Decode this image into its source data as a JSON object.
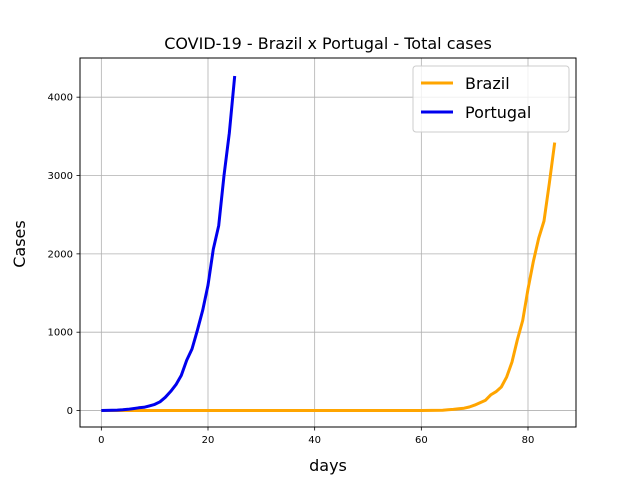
{
  "chart_data": {
    "type": "line",
    "title": "COVID-19 - Brazil x Portugal - Total cases",
    "xlabel": "days",
    "ylabel": "Cases",
    "xlim": [
      -4,
      89
    ],
    "ylim": [
      -210,
      4500
    ],
    "xticks": [
      0,
      20,
      40,
      60,
      80
    ],
    "yticks": [
      0,
      1000,
      2000,
      3000,
      4000
    ],
    "grid": true,
    "legend_position": "top-right",
    "series": [
      {
        "name": "Brazil",
        "color": "#ffa500",
        "x": [
          0,
          5,
          10,
          20,
          30,
          40,
          50,
          55,
          60,
          62,
          64,
          65,
          66,
          67,
          68,
          69,
          70,
          71,
          72,
          73,
          74,
          75,
          76,
          77,
          78,
          79,
          80,
          81,
          82,
          83,
          84,
          85
        ],
        "y": [
          0,
          0,
          0,
          0,
          0,
          0,
          0,
          0,
          1,
          2,
          5,
          10,
          15,
          22,
          30,
          45,
          70,
          100,
          130,
          200,
          240,
          300,
          430,
          620,
          900,
          1150,
          1550,
          1900,
          2200,
          2420,
          2900,
          3420
        ]
      },
      {
        "name": "Portugal",
        "color": "#0000ee",
        "x": [
          0,
          1,
          2,
          3,
          4,
          5,
          6,
          7,
          8,
          9,
          10,
          11,
          12,
          13,
          14,
          15,
          16,
          17,
          18,
          19,
          20,
          21,
          22,
          23,
          24,
          25
        ],
        "y": [
          0,
          2,
          4,
          6,
          9,
          16,
          25,
          35,
          41,
          59,
          78,
          112,
          169,
          245,
          331,
          448,
          642,
          785,
          1020,
          1280,
          1600,
          2060,
          2360,
          3000,
          3540,
          4270
        ]
      }
    ]
  }
}
